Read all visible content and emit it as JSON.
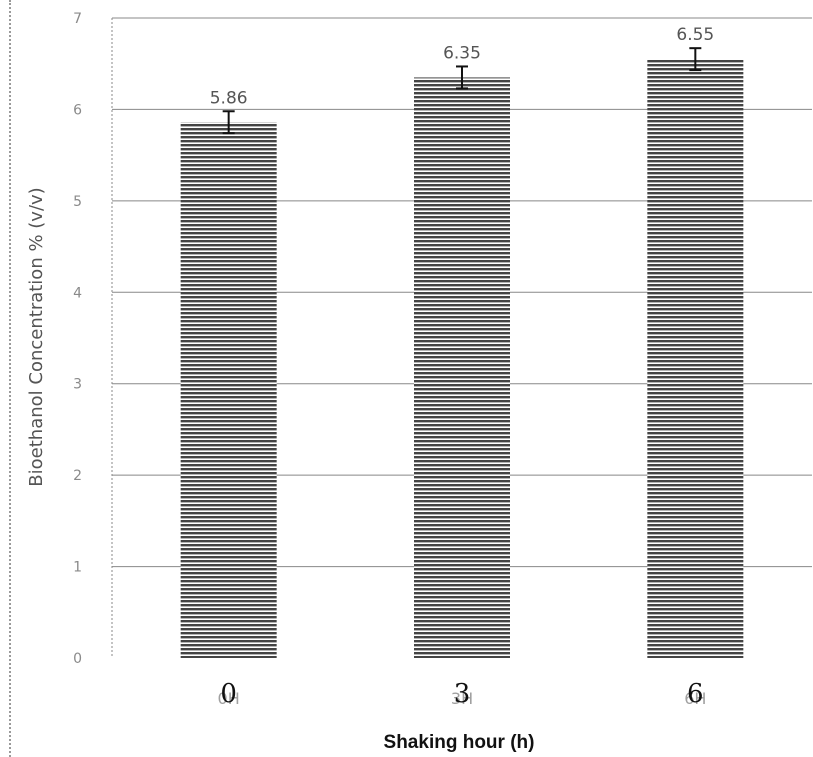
{
  "chart_data": {
    "type": "bar",
    "categories": [
      "0H",
      "3H",
      "6H"
    ],
    "category_overlay_labels": [
      "0",
      "3",
      "6"
    ],
    "values": [
      5.86,
      6.35,
      6.55
    ],
    "data_labels": [
      "5.86",
      "6.35",
      "6.55"
    ],
    "error": [
      0.12,
      0.12,
      0.12
    ],
    "xlabel": "Shaking hour (h)",
    "ylabel": "Bioethanol Concentration % (v/v)",
    "ylim": [
      0,
      7
    ],
    "yticks": [
      "0",
      "1",
      "2",
      "3",
      "4",
      "5",
      "6",
      "7"
    ],
    "grid": true,
    "colors": {
      "bar": "#444444",
      "bar_stripe": "#ffffff",
      "grid": "#888888",
      "axis": "#8a8a8a",
      "error_bar": "#111111"
    }
  }
}
